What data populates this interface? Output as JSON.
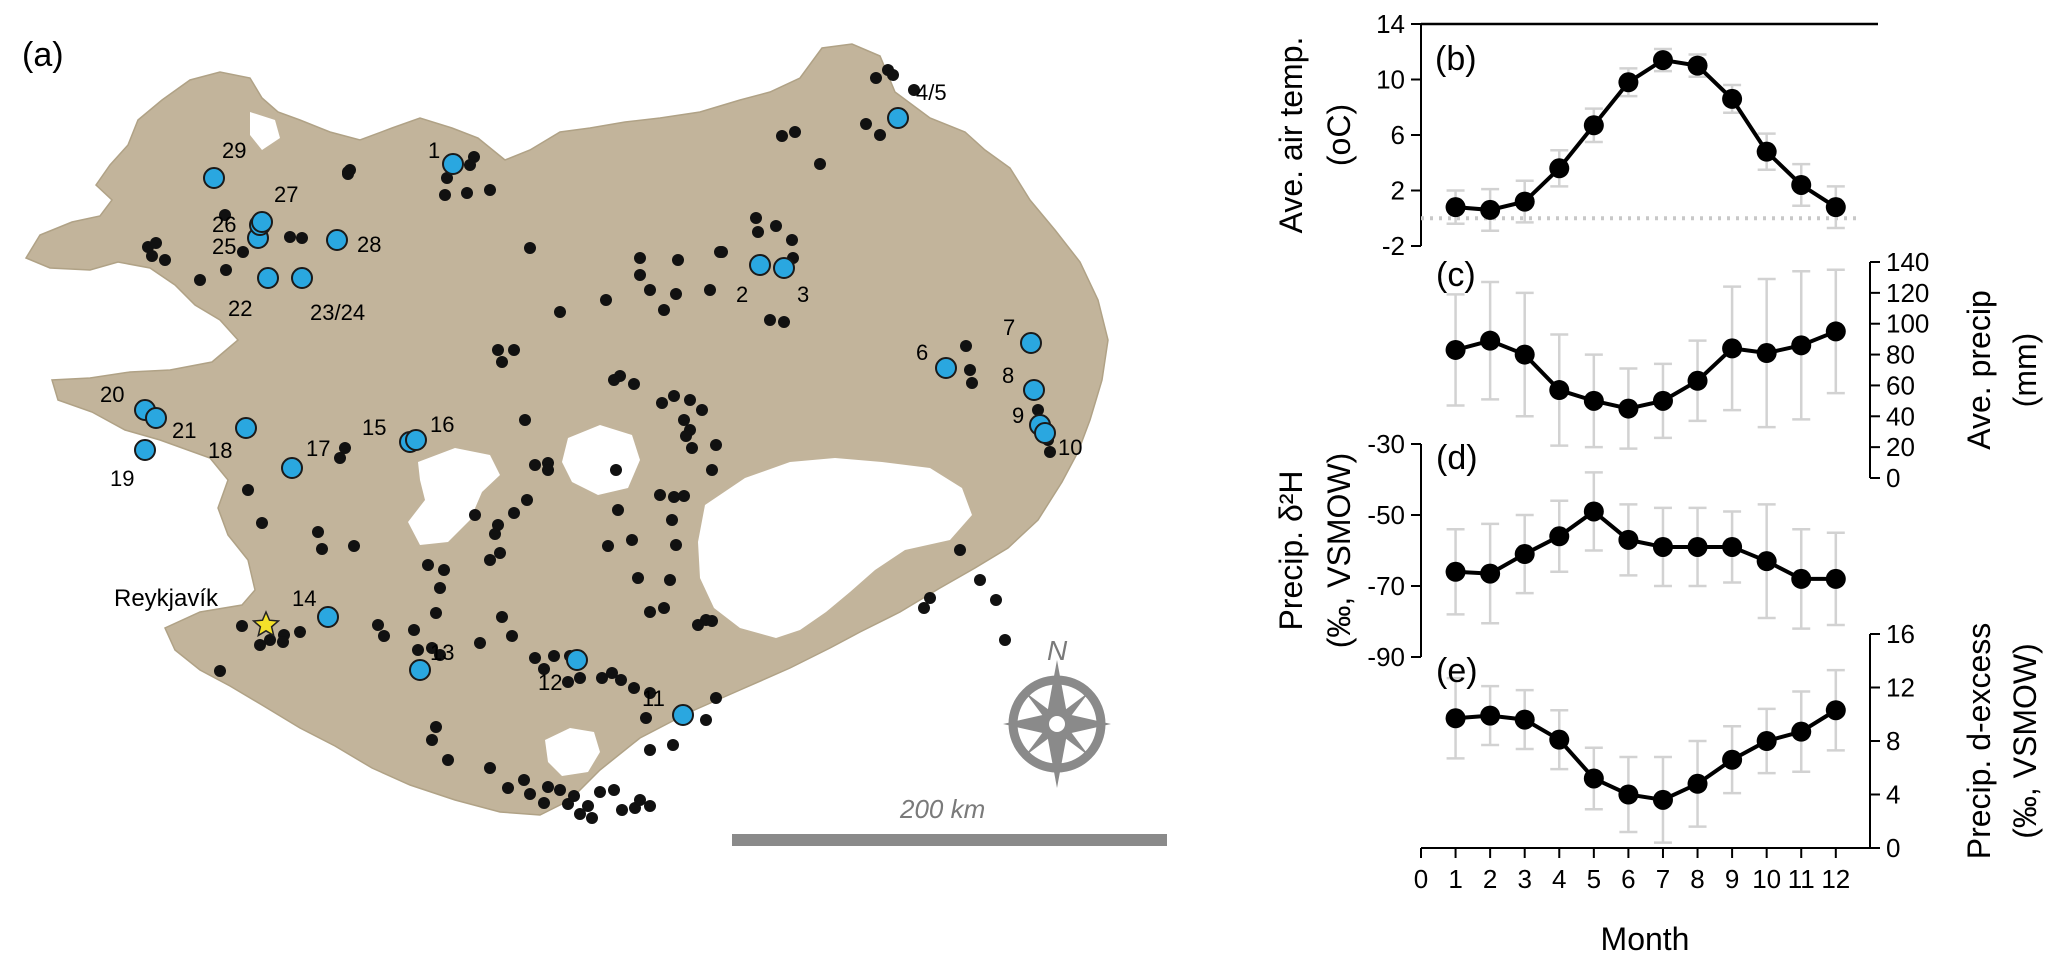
{
  "map": {
    "panel_label": "(a)",
    "city_label": "Reykjavík",
    "north_label": "N",
    "scale_label": "200 km",
    "colors": {
      "land": "#c2b49b",
      "ice": "#ffffff",
      "site": "#2aa7e0",
      "station": "#111111",
      "star": "#f4e12a"
    },
    "site_labels": [
      "1",
      "2",
      "3",
      "4/5",
      "6",
      "7",
      "8",
      "9",
      "10",
      "11",
      "12",
      "13",
      "14",
      "15",
      "16",
      "17",
      "18",
      "19",
      "20",
      "21",
      "22",
      "23/24",
      "25",
      "26",
      "27",
      "28",
      "29"
    ]
  },
  "chart_data": [
    {
      "type": "line",
      "panel_label": "(b)",
      "ylabel_lines": [
        "Ave. air temp.",
        "(oC)"
      ],
      "x": [
        1,
        2,
        3,
        4,
        5,
        6,
        7,
        8,
        9,
        10,
        11,
        12
      ],
      "values": [
        0.8,
        0.6,
        1.2,
        3.6,
        6.7,
        9.8,
        11.4,
        11.0,
        8.6,
        4.8,
        2.4,
        0.8
      ],
      "err": [
        1.2,
        1.5,
        1.5,
        1.3,
        1.2,
        1.0,
        0.8,
        0.8,
        1.0,
        1.3,
        1.5,
        1.5
      ],
      "ylim": [
        -2,
        14
      ],
      "yticks": [
        "-2",
        "2",
        "6",
        "10",
        "14"
      ],
      "axis_side": "left",
      "reference_line": 0
    },
    {
      "type": "line",
      "panel_label": "(c)",
      "ylabel_lines": [
        "Ave. precip",
        "(mm)"
      ],
      "x": [
        1,
        2,
        3,
        4,
        5,
        6,
        7,
        8,
        9,
        10,
        11,
        12
      ],
      "values": [
        83,
        89,
        80,
        57,
        50,
        45,
        50,
        63,
        84,
        81,
        86,
        95
      ],
      "err": [
        36,
        38,
        40,
        36,
        30,
        26,
        24,
        26,
        40,
        48,
        48,
        40
      ],
      "ylim": [
        0,
        140
      ],
      "yticks": [
        "0",
        "20",
        "40",
        "60",
        "80",
        "100",
        "120",
        "140"
      ],
      "axis_side": "right"
    },
    {
      "type": "line",
      "panel_label": "(d)",
      "ylabel_lines": [
        "Precip. δ²H",
        "(‰, VSMOW)"
      ],
      "x": [
        1,
        2,
        3,
        4,
        5,
        6,
        7,
        8,
        9,
        10,
        11,
        12
      ],
      "values": [
        -66,
        -66.5,
        -61,
        -56,
        -49,
        -57,
        -59,
        -59,
        -59,
        -63,
        -68,
        -68
      ],
      "err": [
        12,
        14,
        11,
        10,
        11,
        10,
        11,
        11,
        10,
        16,
        14,
        13
      ],
      "ylim": [
        -90,
        -30
      ],
      "yticks": [
        "-90",
        "-70",
        "-50",
        "-30"
      ],
      "axis_side": "left"
    },
    {
      "type": "line",
      "panel_label": "(e)",
      "ylabel_lines": [
        "Precip. d-excess",
        "(‰, VSMOW)"
      ],
      "x": [
        1,
        2,
        3,
        4,
        5,
        6,
        7,
        8,
        9,
        10,
        11,
        12
      ],
      "values": [
        9.7,
        9.9,
        9.6,
        8.1,
        5.2,
        4.0,
        3.6,
        4.8,
        6.6,
        8.0,
        8.7,
        10.3
      ],
      "err": [
        3.0,
        2.2,
        2.2,
        2.2,
        2.3,
        2.8,
        3.2,
        3.2,
        2.5,
        2.4,
        3.0,
        3.0
      ],
      "ylim": [
        0,
        16
      ],
      "yticks": [
        "0",
        "4",
        "8",
        "12",
        "16"
      ],
      "axis_side": "right"
    }
  ],
  "shared_x": {
    "xlabel": "Month",
    "xticks": [
      "0",
      "1",
      "2",
      "3",
      "4",
      "5",
      "6",
      "7",
      "8",
      "9",
      "10",
      "11",
      "12"
    ]
  }
}
